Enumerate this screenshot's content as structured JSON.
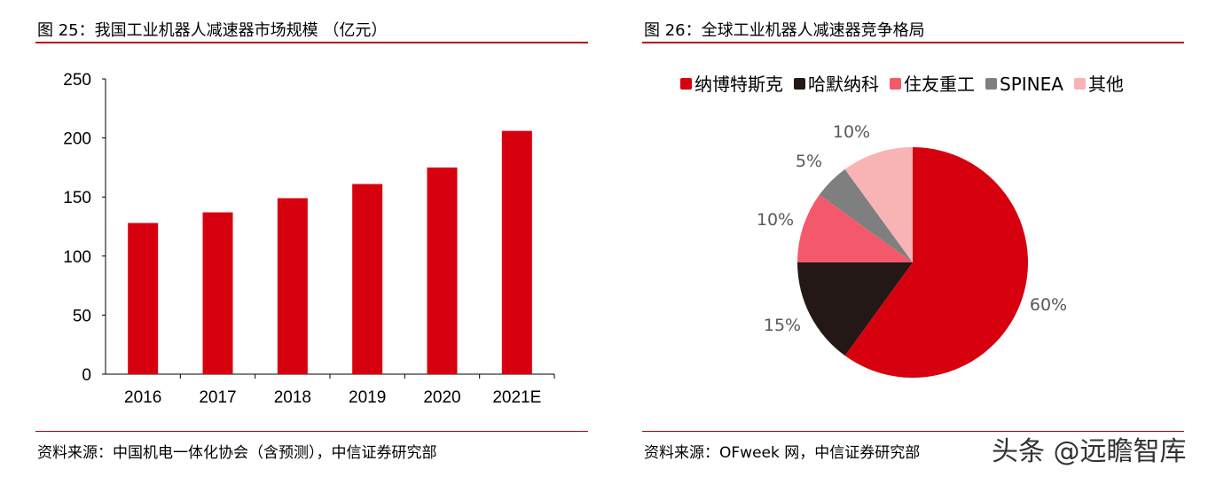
{
  "left": {
    "title": "图 25：我国工业机器人减速器市场规模 （亿元）",
    "source": "资料来源：中国机电一体化协会（含预测），中信证券研究部"
  },
  "right": {
    "title": "图 26：全球工业机器人减速器竞争格局",
    "source": "资料来源：OFweek 网，中信证券研究部"
  },
  "watermark": "头条 @远瞻智库",
  "chart_data": [
    {
      "type": "bar",
      "categories": [
        "2016",
        "2017",
        "2018",
        "2019",
        "2020",
        "2021E"
      ],
      "values": [
        128,
        137,
        149,
        161,
        175,
        206
      ],
      "ylim": [
        0,
        250
      ],
      "yticks": [
        0,
        50,
        100,
        150,
        200,
        250
      ],
      "color": "#d7000f",
      "grid": false
    },
    {
      "type": "pie",
      "legend_position": "top",
      "slices": [
        {
          "name": "纳博特斯克",
          "value": 60,
          "label": "60%",
          "color": "#d7000f"
        },
        {
          "name": "哈默纳科",
          "value": 15,
          "label": "15%",
          "color": "#231815"
        },
        {
          "name": "住友重工",
          "value": 10,
          "label": "10%",
          "color": "#f4596b"
        },
        {
          "name": "SPINEA",
          "value": 5,
          "label": "5%",
          "color": "#7f7f7f"
        },
        {
          "name": "其他",
          "value": 10,
          "label": "10%",
          "color": "#f8b3b5"
        }
      ]
    }
  ]
}
